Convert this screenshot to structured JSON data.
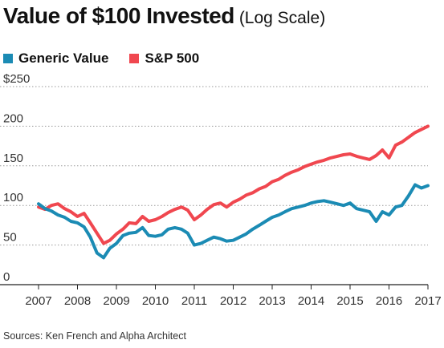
{
  "header": {
    "title": "Value of $100 Invested",
    "subtitle": "(Log Scale)"
  },
  "source": "Sources: Ken French and Alpha Architect",
  "chart_data": {
    "type": "line",
    "title": "Value of $100 Invested",
    "subtitle": "(Log Scale)",
    "xlabel": "",
    "ylabel": "",
    "xlim": [
      2007,
      2017
    ],
    "ylim": [
      0,
      250
    ],
    "grid": true,
    "legend_placement": "top-left",
    "x_ticks": [
      2007,
      2008,
      2009,
      2010,
      2011,
      2012,
      2013,
      2014,
      2015,
      2016,
      2017
    ],
    "x_tick_labels": [
      "2007",
      "2008",
      "2009",
      "2010",
      "2011",
      "2012",
      "2013",
      "2014",
      "2015",
      "2016",
      "2017"
    ],
    "y_ticks": [
      0,
      50,
      100,
      150,
      200,
      250
    ],
    "y_tick_labels": [
      "0",
      "50",
      "100",
      "150",
      "200",
      "$250"
    ],
    "colors": {
      "generic_value": "#1b8bb4",
      "sp500": "#f0474f"
    },
    "series": [
      {
        "name": "S&P 500",
        "x": [
          2007.0,
          2007.17,
          2007.33,
          2007.5,
          2007.67,
          2007.83,
          2008.0,
          2008.17,
          2008.33,
          2008.5,
          2008.67,
          2008.83,
          2009.0,
          2009.17,
          2009.33,
          2009.5,
          2009.67,
          2009.83,
          2010.0,
          2010.17,
          2010.33,
          2010.5,
          2010.67,
          2010.83,
          2011.0,
          2011.17,
          2011.33,
          2011.5,
          2011.67,
          2011.83,
          2012.0,
          2012.17,
          2012.33,
          2012.5,
          2012.67,
          2012.83,
          2013.0,
          2013.17,
          2013.33,
          2013.5,
          2013.67,
          2013.83,
          2014.0,
          2014.17,
          2014.33,
          2014.5,
          2014.67,
          2014.83,
          2015.0,
          2015.17,
          2015.33,
          2015.5,
          2015.67,
          2015.83,
          2016.0,
          2016.17,
          2016.33,
          2016.5,
          2016.67,
          2016.83,
          2017.0
        ],
        "values": [
          98,
          95,
          100,
          102,
          96,
          92,
          86,
          90,
          78,
          65,
          52,
          56,
          64,
          70,
          78,
          77,
          86,
          80,
          82,
          86,
          91,
          95,
          98,
          94,
          82,
          88,
          95,
          101,
          103,
          98,
          104,
          108,
          113,
          116,
          121,
          124,
          130,
          133,
          138,
          142,
          145,
          149,
          152,
          155,
          157,
          160,
          162,
          164,
          165,
          162,
          160,
          158,
          163,
          170,
          160,
          176,
          180,
          186,
          192,
          196,
          200
        ]
      },
      {
        "name": "Generic Value",
        "x": [
          2007.0,
          2007.17,
          2007.33,
          2007.5,
          2007.67,
          2007.83,
          2008.0,
          2008.17,
          2008.33,
          2008.5,
          2008.67,
          2008.83,
          2009.0,
          2009.17,
          2009.33,
          2009.5,
          2009.67,
          2009.83,
          2010.0,
          2010.17,
          2010.33,
          2010.5,
          2010.67,
          2010.83,
          2011.0,
          2011.17,
          2011.33,
          2011.5,
          2011.67,
          2011.83,
          2012.0,
          2012.17,
          2012.33,
          2012.5,
          2012.67,
          2012.83,
          2013.0,
          2013.17,
          2013.33,
          2013.5,
          2013.67,
          2013.83,
          2014.0,
          2014.17,
          2014.33,
          2014.5,
          2014.67,
          2014.83,
          2015.0,
          2015.17,
          2015.33,
          2015.5,
          2015.67,
          2015.83,
          2016.0,
          2016.17,
          2016.33,
          2016.5,
          2016.67,
          2016.83,
          2017.0
        ],
        "values": [
          102,
          96,
          93,
          88,
          85,
          80,
          78,
          73,
          60,
          40,
          34,
          46,
          52,
          62,
          65,
          66,
          72,
          62,
          61,
          63,
          70,
          72,
          70,
          65,
          50,
          52,
          56,
          60,
          58,
          55,
          56,
          60,
          64,
          70,
          75,
          80,
          85,
          88,
          92,
          96,
          98,
          100,
          103,
          105,
          106,
          104,
          102,
          100,
          103,
          96,
          94,
          92,
          80,
          92,
          88,
          98,
          100,
          112,
          126,
          122,
          125
        ]
      }
    ]
  }
}
